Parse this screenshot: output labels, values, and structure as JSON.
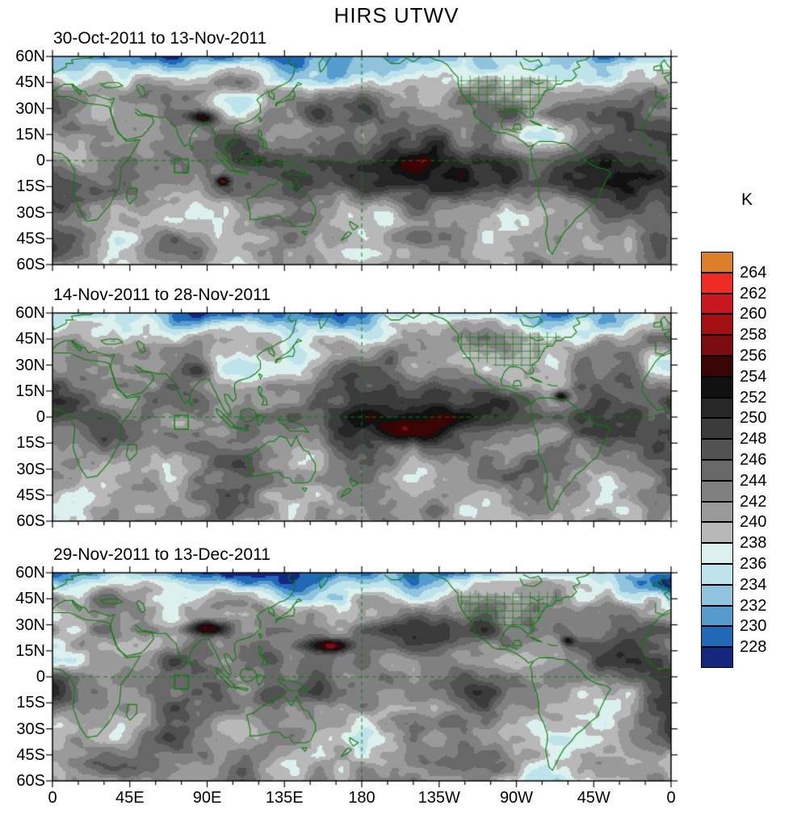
{
  "chart_data": {
    "type": "heatmap",
    "title": "HIRS UTWV",
    "projection": "equirectangular world maps, longitude 0 eastward through 180 back to 0, latitude 60S to 60N",
    "land_outline_color": "#0a7d0a",
    "x_tick_labels": [
      "0",
      "45E",
      "90E",
      "135E",
      "180",
      "135W",
      "90W",
      "45W",
      "0"
    ],
    "y_tick_labels": [
      "60N",
      "45N",
      "30N",
      "15N",
      "0",
      "15S",
      "30S",
      "45S",
      "60S"
    ],
    "panels": [
      {
        "subtitle": "30-Oct-2011 to 13-Nov-2011",
        "seed": 11,
        "features": [
          {
            "lon": 87,
            "lat": 25,
            "amp": 15,
            "sx": 6,
            "sy": 3
          },
          {
            "lon": 99,
            "lat": -12,
            "amp": 13,
            "sx": 3,
            "sy": 2
          },
          {
            "lon": 85,
            "lat": 62,
            "amp": -7,
            "sx": 28,
            "sy": 9
          },
          {
            "lon": 215,
            "lat": -8,
            "amp": 6,
            "sx": 40,
            "sy": 8
          },
          {
            "lon": 330,
            "lat": -12,
            "amp": 5,
            "sx": 25,
            "sy": 9
          },
          {
            "lon": 285,
            "lat": 14,
            "amp": -5,
            "sx": 12,
            "sy": 5
          },
          {
            "lon": 15,
            "lat": -2,
            "amp": -4,
            "sx": 10,
            "sy": 5
          }
        ]
      },
      {
        "subtitle": "14-Nov-2011 to 28-Nov-2011",
        "seed": 47,
        "features": [
          {
            "lon": 100,
            "lat": 62,
            "amp": -9,
            "sx": 30,
            "sy": 9
          },
          {
            "lon": 296,
            "lat": 12,
            "amp": 13,
            "sx": 3,
            "sy": 2
          },
          {
            "lon": 225,
            "lat": -4,
            "amp": 7,
            "sx": 45,
            "sy": 8
          },
          {
            "lon": 85,
            "lat": 27,
            "amp": 8,
            "sx": 8,
            "sy": 4
          },
          {
            "lon": 75,
            "lat": -4,
            "amp": -5,
            "sx": 12,
            "sy": 5
          },
          {
            "lon": 150,
            "lat": -25,
            "amp": -4,
            "sx": 12,
            "sy": 6
          }
        ]
      },
      {
        "subtitle": "29-Nov-2011 to 13-Dec-2011",
        "seed": 83,
        "features": [
          {
            "lon": 88,
            "lat": 28,
            "amp": 16,
            "sx": 8,
            "sy": 3
          },
          {
            "lon": 160,
            "lat": 18,
            "amp": 14,
            "sx": 9,
            "sy": 3
          },
          {
            "lon": 300,
            "lat": 21,
            "amp": 10,
            "sx": 3,
            "sy": 2
          },
          {
            "lon": 105,
            "lat": 60,
            "amp": -8,
            "sx": 30,
            "sy": 9
          },
          {
            "lon": 12,
            "lat": 55,
            "amp": -5,
            "sx": 12,
            "sy": 6
          },
          {
            "lon": 112,
            "lat": -2,
            "amp": -6,
            "sx": 14,
            "sy": 6
          },
          {
            "lon": 215,
            "lat": 22,
            "amp": 5,
            "sx": 28,
            "sy": 8
          }
        ]
      }
    ],
    "overlays": {
      "equator_dashed_line": true,
      "dateline_dashed_line": true,
      "us_state_grid": true,
      "highlight_box": {
        "lon": [
          71,
          79
        ],
        "lat": [
          -7,
          1
        ]
      }
    },
    "colorbar": {
      "unit": "K",
      "tick_labels": [
        264,
        262,
        260,
        258,
        256,
        254,
        252,
        250,
        248,
        246,
        244,
        242,
        240,
        238,
        236,
        234,
        232,
        230,
        228
      ],
      "colors_top_to_bottom": [
        "#dd7e2c",
        "#ee2a23",
        "#c9171e",
        "#a31014",
        "#7a0b0e",
        "#3a0304",
        "#111111",
        "#262626",
        "#3b3b3b",
        "#515151",
        "#686868",
        "#808080",
        "#9a9a9a",
        "#b8b8b8",
        "#dcf0ed",
        "#bfe3ea",
        "#8fc3de",
        "#549bce",
        "#2268b8",
        "#15267f"
      ]
    }
  }
}
